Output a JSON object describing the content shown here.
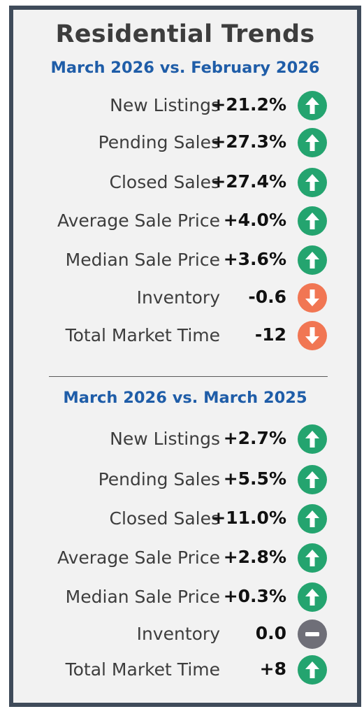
{
  "title": "Residential Trends",
  "sections": [
    {
      "heading": "March 2026 vs. February 2026",
      "rows": [
        {
          "label": "New Listings",
          "value": "+21.2%",
          "trend": "up"
        },
        {
          "label": "Pending Sales",
          "value": "+27.3%",
          "trend": "up"
        },
        {
          "label": "Closed Sales",
          "value": "+27.4%",
          "trend": "up"
        },
        {
          "label": "Average Sale Price",
          "value": "+4.0%",
          "trend": "up"
        },
        {
          "label": "Median Sale Price",
          "value": "+3.6%",
          "trend": "up"
        },
        {
          "label": "Inventory",
          "value": "-0.6",
          "trend": "down"
        },
        {
          "label": "Total Market Time",
          "value": "-12",
          "trend": "down"
        }
      ]
    },
    {
      "heading": "March 2026 vs. March 2025",
      "rows": [
        {
          "label": "New Listings",
          "value": "+2.7%",
          "trend": "up"
        },
        {
          "label": "Pending Sales",
          "value": "+5.5%",
          "trend": "up"
        },
        {
          "label": "Closed Sales",
          "value": "+11.0%",
          "trend": "up"
        },
        {
          "label": "Average Sale Price",
          "value": "+2.8%",
          "trend": "up"
        },
        {
          "label": "Median Sale Price",
          "value": "+0.3%",
          "trend": "up"
        },
        {
          "label": "Inventory",
          "value": "0.0",
          "trend": "neutral"
        },
        {
          "label": "Total Market Time",
          "value": "+8",
          "trend": "up"
        }
      ]
    }
  ],
  "colors": {
    "up": "#24a46f",
    "down": "#f17653",
    "neutral": "#6f6f78",
    "heading": "#1f5da8",
    "border": "#3f4b5a"
  },
  "icons": {
    "up": "arrow-up-icon",
    "down": "arrow-down-icon",
    "neutral": "minus-icon"
  }
}
